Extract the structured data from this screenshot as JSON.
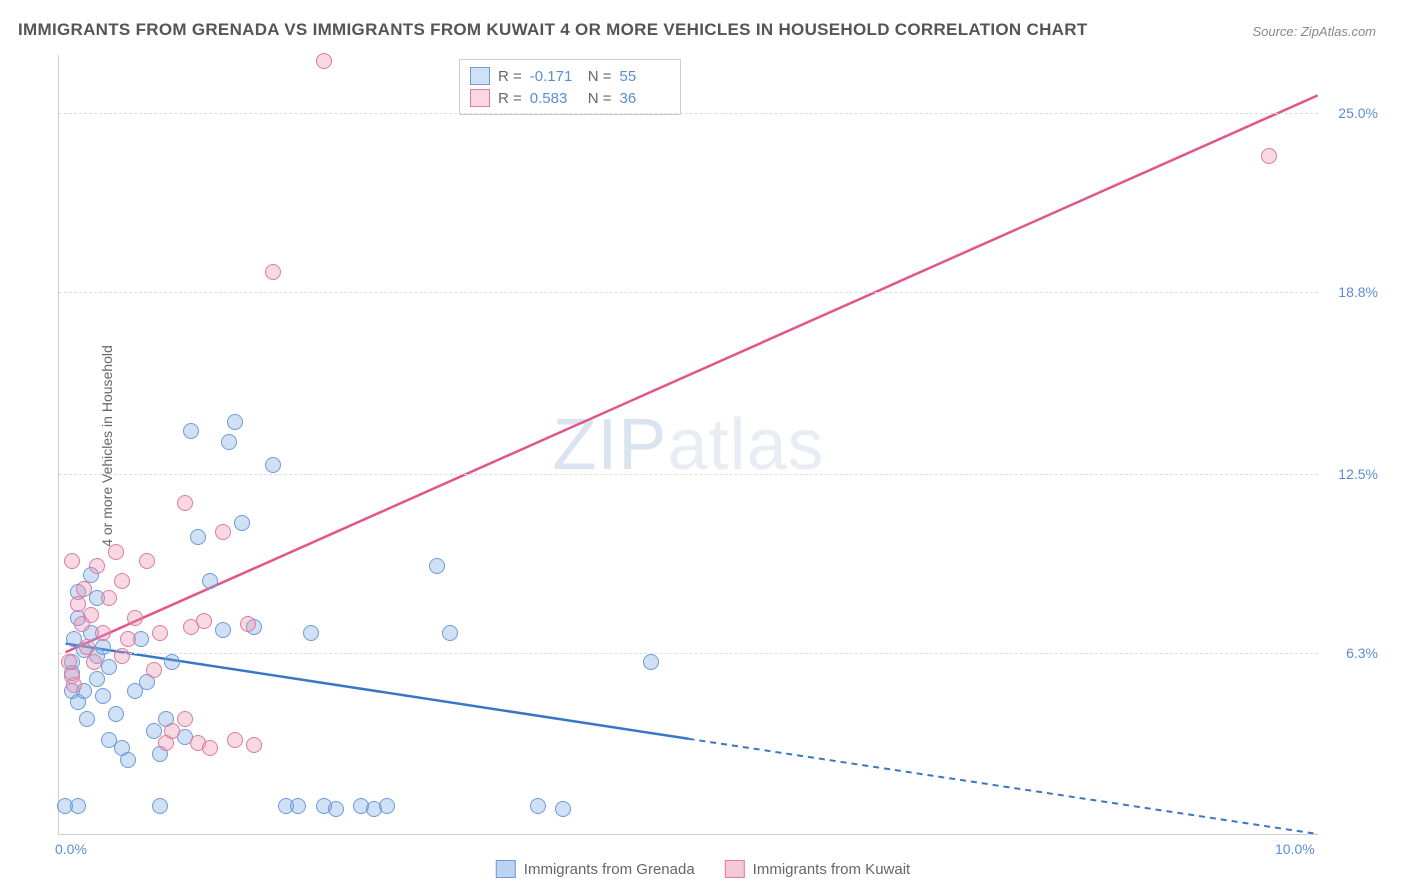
{
  "title": "IMMIGRANTS FROM GRENADA VS IMMIGRANTS FROM KUWAIT 4 OR MORE VEHICLES IN HOUSEHOLD CORRELATION CHART",
  "source": "Source: ZipAtlas.com",
  "y_axis_label": "4 or more Vehicles in Household",
  "watermark": {
    "bold": "ZIP",
    "light": "atlas"
  },
  "chart": {
    "type": "scatter",
    "xlim": [
      0,
      10
    ],
    "ylim": [
      0,
      27
    ],
    "x_ticks": [
      {
        "val": 0.0,
        "label": "0.0%",
        "align": "left"
      },
      {
        "val": 10.0,
        "label": "10.0%",
        "align": "right"
      }
    ],
    "y_ticks": [
      {
        "val": 6.3,
        "label": "6.3%"
      },
      {
        "val": 12.5,
        "label": "12.5%"
      },
      {
        "val": 18.8,
        "label": "18.8%"
      },
      {
        "val": 25.0,
        "label": "25.0%"
      }
    ],
    "grid_color": "#dddddd",
    "background_color": "#ffffff",
    "point_radius": 8,
    "series": [
      {
        "name": "Immigrants from Grenada",
        "fill": "rgba(120,165,225,0.35)",
        "stroke": "#6b9bd8",
        "line_color": "#3a76c8",
        "R": "-0.171",
        "N": "55",
        "trend": {
          "x1": 0.05,
          "y1": 6.6,
          "x2": 5.0,
          "y2": 3.3,
          "dash_x1": 5.0,
          "dash_y1": 3.3,
          "dash_x2": 10.0,
          "dash_y2": 0.0
        },
        "points": [
          [
            0.05,
            1.0
          ],
          [
            0.15,
            1.0
          ],
          [
            0.1,
            6.0
          ],
          [
            0.1,
            5.6
          ],
          [
            0.1,
            5.0
          ],
          [
            0.15,
            4.6
          ],
          [
            0.15,
            7.5
          ],
          [
            0.2,
            6.4
          ],
          [
            0.25,
            7.0
          ],
          [
            0.3,
            6.2
          ],
          [
            0.3,
            5.4
          ],
          [
            0.35,
            4.8
          ],
          [
            0.4,
            5.8
          ],
          [
            0.4,
            3.3
          ],
          [
            0.45,
            4.2
          ],
          [
            0.5,
            3.0
          ],
          [
            0.55,
            2.6
          ],
          [
            0.6,
            5.0
          ],
          [
            0.65,
            6.8
          ],
          [
            0.7,
            5.3
          ],
          [
            0.75,
            3.6
          ],
          [
            0.8,
            2.8
          ],
          [
            0.85,
            4.0
          ],
          [
            0.9,
            6.0
          ],
          [
            1.0,
            3.4
          ],
          [
            1.05,
            14.0
          ],
          [
            1.1,
            10.3
          ],
          [
            1.2,
            8.8
          ],
          [
            1.3,
            7.1
          ],
          [
            1.35,
            13.6
          ],
          [
            1.4,
            14.3
          ],
          [
            1.45,
            10.8
          ],
          [
            1.55,
            7.2
          ],
          [
            1.7,
            12.8
          ],
          [
            1.8,
            1.0
          ],
          [
            1.9,
            1.0
          ],
          [
            2.0,
            7.0
          ],
          [
            2.1,
            1.0
          ],
          [
            2.2,
            0.9
          ],
          [
            2.4,
            1.0
          ],
          [
            2.5,
            0.9
          ],
          [
            2.6,
            1.0
          ],
          [
            3.0,
            9.3
          ],
          [
            3.1,
            7.0
          ],
          [
            3.8,
            1.0
          ],
          [
            4.0,
            0.9
          ],
          [
            4.7,
            6.0
          ],
          [
            0.8,
            1.0
          ],
          [
            0.3,
            8.2
          ],
          [
            0.25,
            9.0
          ],
          [
            0.15,
            8.4
          ],
          [
            0.2,
            5.0
          ],
          [
            0.35,
            6.5
          ],
          [
            0.12,
            6.8
          ],
          [
            0.22,
            4.0
          ]
        ]
      },
      {
        "name": "Immigrants from Kuwait",
        "fill": "rgba(235,145,175,0.35)",
        "stroke": "#e07aa0",
        "line_color": "#e2558a",
        "R": "0.583",
        "N": "36",
        "trend": {
          "x1": 0.05,
          "y1": 6.3,
          "x2": 10.0,
          "y2": 25.6
        },
        "points": [
          [
            0.08,
            6.0
          ],
          [
            0.1,
            5.5
          ],
          [
            0.15,
            8.0
          ],
          [
            0.18,
            7.3
          ],
          [
            0.2,
            8.5
          ],
          [
            0.22,
            6.5
          ],
          [
            0.25,
            7.6
          ],
          [
            0.3,
            9.3
          ],
          [
            0.35,
            7.0
          ],
          [
            0.4,
            8.2
          ],
          [
            0.45,
            9.8
          ],
          [
            0.5,
            8.8
          ],
          [
            0.55,
            6.8
          ],
          [
            0.6,
            7.5
          ],
          [
            0.7,
            9.5
          ],
          [
            0.8,
            7.0
          ],
          [
            0.85,
            3.2
          ],
          [
            0.9,
            3.6
          ],
          [
            1.0,
            11.5
          ],
          [
            1.05,
            7.2
          ],
          [
            1.1,
            3.2
          ],
          [
            1.15,
            7.4
          ],
          [
            1.2,
            3.0
          ],
          [
            1.3,
            10.5
          ],
          [
            1.4,
            3.3
          ],
          [
            1.5,
            7.3
          ],
          [
            1.55,
            3.1
          ],
          [
            1.7,
            19.5
          ],
          [
            2.1,
            26.8
          ],
          [
            0.1,
            9.5
          ],
          [
            0.12,
            5.2
          ],
          [
            0.28,
            6.0
          ],
          [
            0.5,
            6.2
          ],
          [
            0.75,
            5.7
          ],
          [
            1.0,
            4.0
          ],
          [
            9.6,
            23.5
          ]
        ]
      }
    ]
  },
  "stats_labels": {
    "R": "R =",
    "N": "N ="
  },
  "legend": [
    {
      "label": "Immigrants from Grenada",
      "fill": "rgba(120,165,225,0.5)",
      "stroke": "#6b9bd8"
    },
    {
      "label": "Immigrants from Kuwait",
      "fill": "rgba(235,145,175,0.5)",
      "stroke": "#e07aa0"
    }
  ]
}
